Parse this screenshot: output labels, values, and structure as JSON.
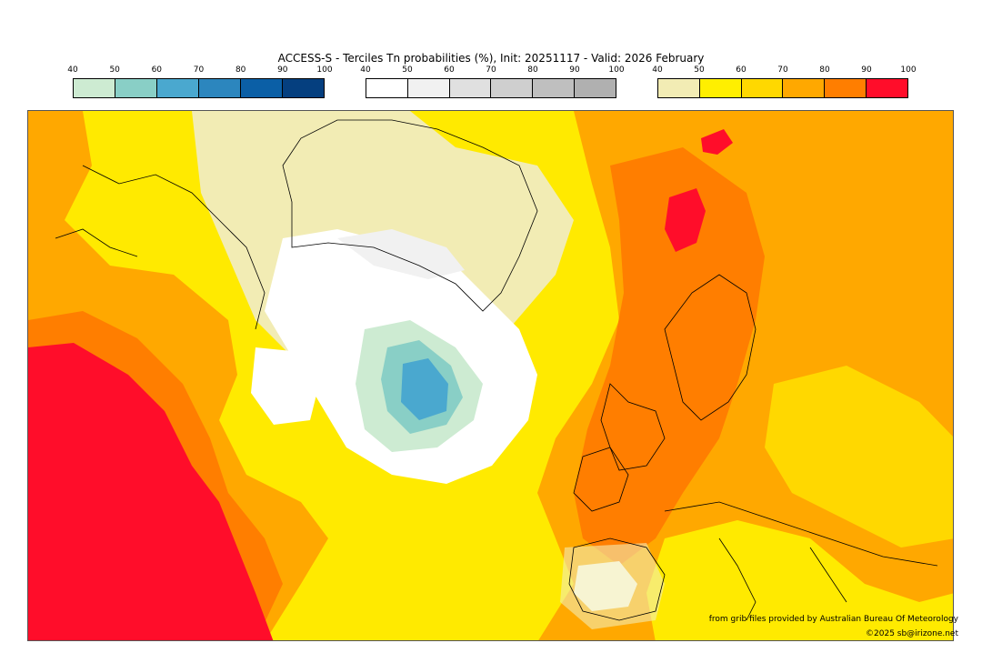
{
  "title": "ACCESS-S - Terciles Tn probabilities (%), Init: 20251117 - Valid: 2026 February",
  "colorbars": [
    {
      "name": "below-normal",
      "ticks": [
        "40",
        "50",
        "60",
        "70",
        "80",
        "90",
        "100"
      ],
      "colors": [
        "#cdebd2",
        "#89cfc6",
        "#4aa8cf",
        "#2c86be",
        "#0b5fa6",
        "#053f7f"
      ]
    },
    {
      "name": "near-normal",
      "ticks": [
        "40",
        "50",
        "60",
        "70",
        "80",
        "90",
        "100"
      ],
      "colors": [
        "#ffffff",
        "#f1f1f1",
        "#e0e0e0",
        "#cfcfcf",
        "#bfbfbf",
        "#b0b0b0"
      ]
    },
    {
      "name": "above-normal",
      "ticks": [
        "40",
        "50",
        "60",
        "70",
        "80",
        "90",
        "100"
      ],
      "colors": [
        "#f2ecb4",
        "#ffef00",
        "#ffd800",
        "#ffa800",
        "#ff7e00",
        "#ff0d2a"
      ]
    }
  ],
  "credits": {
    "source": "from grib files provided by Australian Bureau Of Meteorology",
    "copyright": "©2025 sb@irizone.net"
  }
}
